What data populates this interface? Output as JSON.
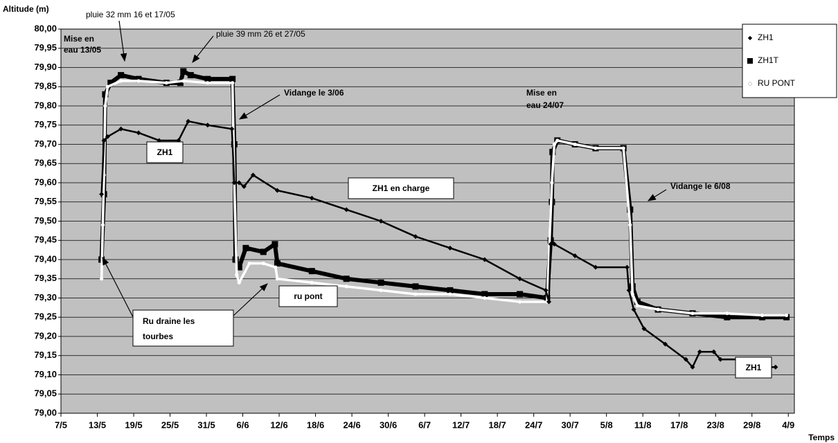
{
  "chart_data": {
    "type": "scatter",
    "ylabel": "Altitude (m)",
    "xlabel": "Temps",
    "xlim": [
      0,
      121
    ],
    "ylim": [
      79,
      80
    ],
    "xticks": [
      {
        "value": 0,
        "label": "7/5"
      },
      {
        "value": 6,
        "label": "13/5"
      },
      {
        "value": 12,
        "label": "19/5"
      },
      {
        "value": 18,
        "label": "25/5"
      },
      {
        "value": 24,
        "label": "31/5"
      },
      {
        "value": 30,
        "label": "6/6"
      },
      {
        "value": 36,
        "label": "12/6"
      },
      {
        "value": 42,
        "label": "18/6"
      },
      {
        "value": 48,
        "label": "24/6"
      },
      {
        "value": 54,
        "label": "30/6"
      },
      {
        "value": 60,
        "label": "6/7"
      },
      {
        "value": 66,
        "label": "12/7"
      },
      {
        "value": 72,
        "label": "18/7"
      },
      {
        "value": 78,
        "label": "24/7"
      },
      {
        "value": 84,
        "label": "30/7"
      },
      {
        "value": 90,
        "label": "5/8"
      },
      {
        "value": 96,
        "label": "11/8"
      },
      {
        "value": 102,
        "label": "17/8"
      },
      {
        "value": 108,
        "label": "23/8"
      },
      {
        "value": 114,
        "label": "29/8"
      },
      {
        "value": 120,
        "label": "4/9"
      }
    ],
    "yticks": [
      {
        "value": 79,
        "label": "79,00"
      },
      {
        "value": 79.05,
        "label": "79,05"
      },
      {
        "value": 79.1,
        "label": "79,10"
      },
      {
        "value": 79.15,
        "label": "79,15"
      },
      {
        "value": 79.2,
        "label": "79,20"
      },
      {
        "value": 79.25,
        "label": "79,25"
      },
      {
        "value": 79.3,
        "label": "79,30"
      },
      {
        "value": 79.35,
        "label": "79,35"
      },
      {
        "value": 79.4,
        "label": "79,40"
      },
      {
        "value": 79.45,
        "label": "79,45"
      },
      {
        "value": 79.5,
        "label": "79,50"
      },
      {
        "value": 79.55,
        "label": "79,55"
      },
      {
        "value": 79.6,
        "label": "79,60"
      },
      {
        "value": 79.65,
        "label": "79,65"
      },
      {
        "value": 79.7,
        "label": "79,70"
      },
      {
        "value": 79.75,
        "label": "79,75"
      },
      {
        "value": 79.8,
        "label": "79,80"
      },
      {
        "value": 79.85,
        "label": "79,85"
      },
      {
        "value": 79.9,
        "label": "79,90"
      },
      {
        "value": 79.95,
        "label": "79,95"
      },
      {
        "value": 80,
        "label": "80,00"
      }
    ],
    "grid": true,
    "legend": "upper right",
    "series": [
      {
        "name": "ZH1T",
        "color": "#000000",
        "marker": "square",
        "x": [
          6.7,
          7.1,
          7.3,
          8.2,
          9.9,
          12.8,
          17.4,
          19.7,
          20.2,
          21.4,
          24.2,
          28.3,
          28.6,
          28.8,
          29.4,
          30.5,
          33.4,
          35.3,
          35.7,
          41.4,
          47.1,
          52.8,
          58.5,
          64.2,
          69.9,
          75.7,
          80.2,
          80.8,
          81.0,
          81.1,
          81.9,
          84.8,
          88.2,
          92.8,
          93.9,
          94.3,
          95.1,
          98.5,
          104.2,
          109.9,
          115.7,
          119.7
        ],
        "values": [
          79.4,
          79.57,
          79.83,
          79.86,
          79.88,
          79.87,
          79.86,
          79.86,
          79.89,
          79.88,
          79.87,
          79.87,
          79.7,
          79.4,
          79.38,
          79.43,
          79.42,
          79.44,
          79.39,
          79.37,
          79.35,
          79.34,
          79.33,
          79.32,
          79.31,
          79.31,
          79.3,
          79.45,
          79.55,
          79.68,
          79.71,
          79.7,
          79.69,
          79.69,
          79.53,
          79.33,
          79.29,
          79.27,
          79.26,
          79.25,
          79.25,
          79.25
        ]
      },
      {
        "name": "RU PONT",
        "color": "#ffffff",
        "marker": "circle",
        "x": [
          6.7,
          6.9,
          7.1,
          7.3,
          7.7,
          9.9,
          12.8,
          17.4,
          20.2,
          24.2,
          28.3,
          28.6,
          29.0,
          29.4,
          31.1,
          33.4,
          35.4,
          35.7,
          41.4,
          47.1,
          52.8,
          58.5,
          64.2,
          69.9,
          75.7,
          80.2,
          81.0,
          81.4,
          81.9,
          84.8,
          88.2,
          92.8,
          93.9,
          94.3,
          95.1,
          98.5,
          104.2,
          109.9,
          115.7,
          119.7
        ],
        "values": [
          79.35,
          79.49,
          79.62,
          79.8,
          79.85,
          79.865,
          79.865,
          79.86,
          79.865,
          79.86,
          79.86,
          79.6,
          79.36,
          79.34,
          79.39,
          79.39,
          79.38,
          79.35,
          79.34,
          79.33,
          79.32,
          79.31,
          79.31,
          79.3,
          79.29,
          79.29,
          79.6,
          79.7,
          79.71,
          79.7,
          79.69,
          79.69,
          79.49,
          79.31,
          79.28,
          79.27,
          79.26,
          79.26,
          79.255,
          79.255
        ]
      },
      {
        "name": "ZH1",
        "color": "#000000",
        "marker": "diamond",
        "x": [
          6.7,
          7.1,
          7.7,
          9.9,
          12.8,
          16.2,
          19.4,
          21.0,
          24.2,
          28.2,
          28.6,
          29.4,
          30.2,
          31.7,
          35.7,
          41.4,
          47.1,
          52.8,
          58.5,
          64.2,
          69.9,
          75.7,
          80.0,
          80.5,
          80.8,
          81.4,
          84.8,
          88.2,
          93.4,
          93.7,
          94.5,
          96.2,
          99.7,
          103.1,
          104.2,
          105.4,
          107.7,
          108.8,
          112.2,
          114.5,
          117.9
        ],
        "values": [
          79.57,
          79.71,
          79.72,
          79.74,
          79.73,
          79.71,
          79.71,
          79.76,
          79.75,
          79.74,
          79.6,
          79.6,
          79.59,
          79.62,
          79.58,
          79.56,
          79.53,
          79.5,
          79.46,
          79.43,
          79.4,
          79.35,
          79.32,
          79.29,
          79.44,
          79.44,
          79.41,
          79.38,
          79.38,
          79.32,
          79.27,
          79.22,
          79.18,
          79.14,
          79.12,
          79.16,
          79.16,
          79.14,
          79.14,
          79.12,
          79.12
        ]
      }
    ],
    "annotations": [
      "Mise en",
      "eau 13/05",
      "pluie 32 mm 16 et 17/05",
      "pluie 39 mm 26 et 27/05",
      "Vidange le 3/06",
      "Mise en",
      "eau 24/07",
      "Vidange le 6/08",
      "ZH1",
      "ZH1 en charge",
      "ru pont",
      "Ru draine les",
      "tourbes",
      "ZH1"
    ]
  }
}
